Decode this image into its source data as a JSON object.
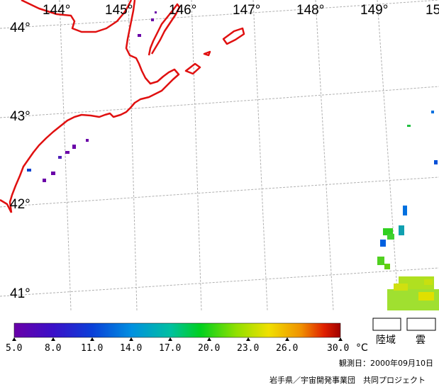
{
  "map": {
    "lon_labels": [
      "144°",
      "145°",
      "146°",
      "147°",
      "148°",
      "149°",
      "15"
    ],
    "lat_labels": [
      "44°",
      "43°",
      "42°",
      "41°"
    ],
    "colors": {
      "coastline": "#e01010",
      "grid": "#b0b0b0"
    }
  },
  "legend": {
    "ticks": [
      "5.0",
      "8.0",
      "11.0",
      "14.0",
      "17.0",
      "20.0",
      "23.0",
      "26.0",
      "30.0"
    ],
    "unit": "°C",
    "range_min": 5.0,
    "range_max": 30.0,
    "gradient_stops": [
      "#6a00a8",
      "#3a10c8",
      "#0a40d8",
      "#0090e0",
      "#00c0a0",
      "#00d020",
      "#90e000",
      "#f0e000",
      "#f09000",
      "#e02000",
      "#a00000"
    ],
    "boxes": [
      {
        "label": "陸域"
      },
      {
        "label": "雲"
      }
    ]
  },
  "footer": {
    "date": "観測日：2000年09月10日",
    "credit": "岩手県／宇宙開発事業団　共同プロジェクト"
  }
}
